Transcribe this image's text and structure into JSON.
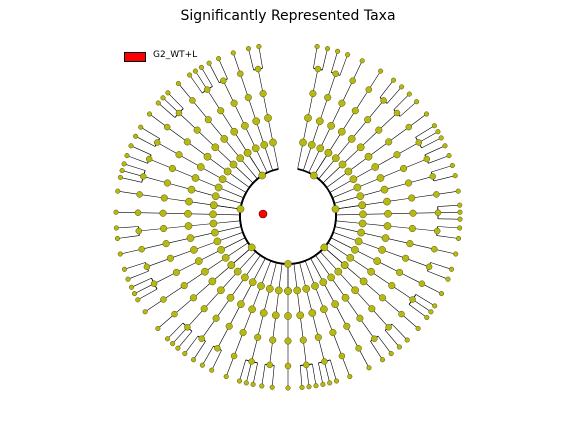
{
  "title": "Significantly Represented Taxa",
  "legend": {
    "entries": [
      {
        "label": "G2_WT+L",
        "color": "#ff0000"
      }
    ]
  },
  "colors": {
    "root_node": "#ff0000",
    "taxon_node": "#b5b815",
    "node_stroke": "#555500",
    "edge": "#000000"
  },
  "icons": {
    "root": "red-circle",
    "taxon": "olive-circle"
  }
}
